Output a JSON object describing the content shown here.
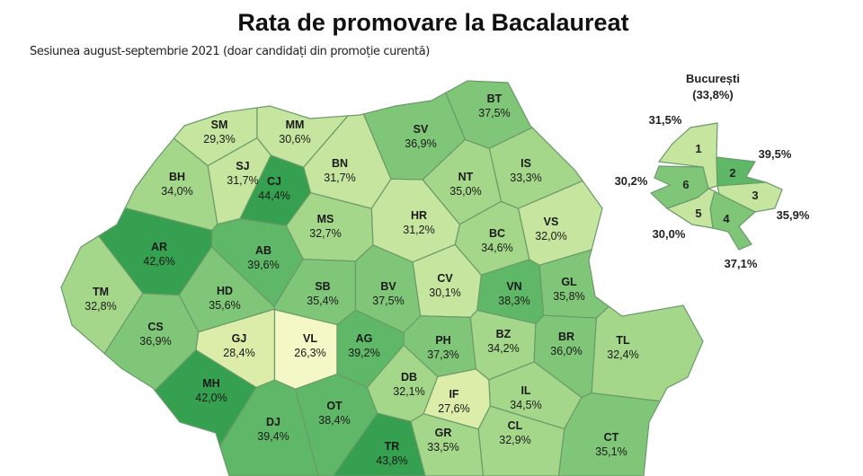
{
  "title": "Rata de promovare la Bacalaureat",
  "subtitle": "Sesiunea august-septembrie 2021 (doar candidați din promoție curentă)",
  "color_scale": [
    {
      "max": 27,
      "color": "#f3f8c6"
    },
    {
      "max": 29,
      "color": "#dcedaa"
    },
    {
      "max": 32,
      "color": "#c6e59e"
    },
    {
      "max": 35,
      "color": "#a5d78a"
    },
    {
      "max": 38,
      "color": "#80c678"
    },
    {
      "max": 41,
      "color": "#5fb867"
    },
    {
      "max": 100,
      "color": "#35a04f"
    }
  ],
  "border_color": "#6a9a6a",
  "counties": [
    {
      "code": "SM",
      "value": "29,3%"
    },
    {
      "code": "MM",
      "value": "30,6%"
    },
    {
      "code": "SJ",
      "value": "31,7%"
    },
    {
      "code": "BN",
      "value": "31,7%"
    },
    {
      "code": "CJ",
      "value": "44,4%"
    },
    {
      "code": "BH",
      "value": "34,0%"
    },
    {
      "code": "SV",
      "value": "36,9%"
    },
    {
      "code": "BT",
      "value": "37,5%"
    },
    {
      "code": "IS",
      "value": "33,3%"
    },
    {
      "code": "NT",
      "value": "35,0%"
    },
    {
      "code": "BC",
      "value": "34,6%"
    },
    {
      "code": "VS",
      "value": "32,0%"
    },
    {
      "code": "HR",
      "value": "31,2%"
    },
    {
      "code": "MS",
      "value": "32,7%"
    },
    {
      "code": "AB",
      "value": "39,6%"
    },
    {
      "code": "AR",
      "value": "42,6%"
    },
    {
      "code": "TM",
      "value": "32,8%"
    },
    {
      "code": "HD",
      "value": "35,6%"
    },
    {
      "code": "SB",
      "value": "35,4%"
    },
    {
      "code": "BV",
      "value": "37,5%"
    },
    {
      "code": "CV",
      "value": "30,1%"
    },
    {
      "code": "VN",
      "value": "38,3%"
    },
    {
      "code": "GL",
      "value": "35,8%"
    },
    {
      "code": "CS",
      "value": "36,9%"
    },
    {
      "code": "GJ",
      "value": "28,4%"
    },
    {
      "code": "VL",
      "value": "26,3%"
    },
    {
      "code": "AG",
      "value": "39,2%"
    },
    {
      "code": "PH",
      "value": "37,3%"
    },
    {
      "code": "BZ",
      "value": "34,2%"
    },
    {
      "code": "BR",
      "value": "36,0%"
    },
    {
      "code": "TL",
      "value": "32,4%"
    },
    {
      "code": "MH",
      "value": "42,0%"
    },
    {
      "code": "DJ",
      "value": "39,4%"
    },
    {
      "code": "OT",
      "value": "38,4%"
    },
    {
      "code": "DB",
      "value": "32,1%"
    },
    {
      "code": "IF",
      "value": "27,6%"
    },
    {
      "code": "IL",
      "value": "34,5%"
    },
    {
      "code": "CL",
      "value": "32,9%"
    },
    {
      "code": "CT",
      "value": "35,1%"
    },
    {
      "code": "TR",
      "value": "43,8%"
    },
    {
      "code": "GR",
      "value": "33,5%"
    }
  ],
  "bucuresti": {
    "name": "București",
    "total": "(33,8%)",
    "sectors": [
      {
        "label": "1",
        "value": "31,5%"
      },
      {
        "label": "2",
        "value": "39,5%"
      },
      {
        "label": "3",
        "value": "30,2%"
      },
      {
        "label": "4",
        "value": "35,9%"
      },
      {
        "label": "5",
        "value": "30,0%"
      },
      {
        "label": "6",
        "value": "37,1%"
      }
    ]
  }
}
